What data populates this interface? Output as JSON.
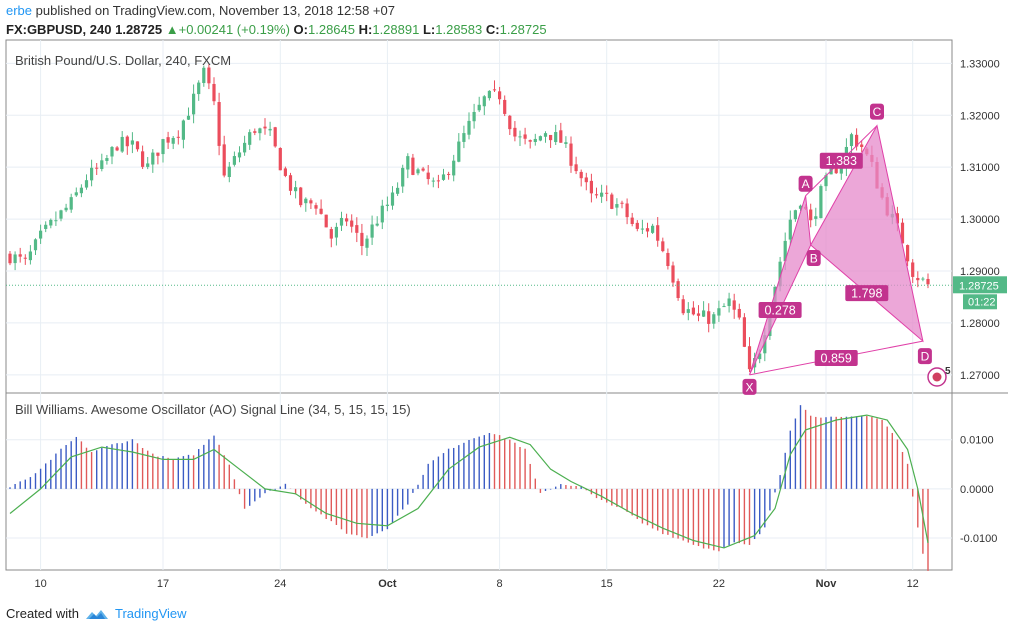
{
  "header": {
    "author": "erbe",
    "published_text": "published on TradingView.com, November 13, 2018 12:58 +07",
    "symbol": "FX:GBPUSD, 240",
    "last": "1.28725",
    "change_arrow": "▲",
    "change": "+0.00241 (+0.19%)",
    "o_label": "O:",
    "o_value": "1.28645",
    "h_label": "H:",
    "h_value": "1.28891",
    "l_label": "L:",
    "l_value": "1.28583",
    "c_label": "C:",
    "c_value": "1.28725"
  },
  "footer": {
    "created_with": "Created with",
    "brand": "TradingView"
  },
  "colors": {
    "up": "#53b987",
    "down": "#eb4d5c",
    "pattern": "#e040a8",
    "pattern_fill": "#e58acb",
    "ao_up": "#3b5bc4",
    "ao_down": "#e05a5a",
    "signal": "#4caf50",
    "price_tag": "#53b987"
  },
  "chart_data": [
    {
      "type": "candlestick",
      "title": "British Pound/U.S. Dollar, 240, FXCM",
      "y_ticks": [
        "1.33000",
        "1.32000",
        "1.31000",
        "1.30000",
        "1.29000",
        "1.28000",
        "1.27000"
      ],
      "ylim": [
        1.2665,
        1.3345
      ],
      "x_ticks": [
        "10",
        "17",
        "24",
        "Oct",
        "8",
        "15",
        "22",
        "Nov",
        "12"
      ],
      "last_price_label": "1.28725",
      "countdown_label": "01:22",
      "close_path": [
        [
          0,
          1.293
        ],
        [
          3,
          1.2915
        ],
        [
          6,
          1.2965
        ],
        [
          9,
          1.3
        ],
        [
          12,
          1.303
        ],
        [
          15,
          1.308
        ],
        [
          18,
          1.31
        ],
        [
          21,
          1.3145
        ],
        [
          24,
          1.314
        ],
        [
          27,
          1.31
        ],
        [
          30,
          1.315
        ],
        [
          33,
          1.317
        ],
        [
          36,
          1.323
        ],
        [
          38,
          1.328
        ],
        [
          40,
          1.322
        ],
        [
          42,
          1.308
        ],
        [
          45,
          1.313
        ],
        [
          48,
          1.3175
        ],
        [
          51,
          1.316
        ],
        [
          54,
          1.308
        ],
        [
          57,
          1.303
        ],
        [
          60,
          1.303
        ],
        [
          63,
          1.2965
        ],
        [
          66,
          1.3
        ],
        [
          69,
          1.295
        ],
        [
          72,
          1.3
        ],
        [
          75,
          1.304
        ],
        [
          78,
          1.311
        ],
        [
          81,
          1.308
        ],
        [
          84,
          1.306
        ],
        [
          87,
          1.312
        ],
        [
          90,
          1.318
        ],
        [
          93,
          1.323
        ],
        [
          96,
          1.324
        ],
        [
          99,
          1.316
        ],
        [
          102,
          1.314
        ],
        [
          105,
          1.317
        ],
        [
          108,
          1.315
        ],
        [
          111,
          1.31
        ],
        [
          114,
          1.304
        ],
        [
          117,
          1.304
        ],
        [
          120,
          1.302
        ],
        [
          123,
          1.2975
        ],
        [
          126,
          1.2985
        ],
        [
          129,
          1.292
        ],
        [
          132,
          1.283
        ],
        [
          135,
          1.281
        ],
        [
          138,
          1.281
        ],
        [
          141,
          1.284
        ],
        [
          143,
          1.28
        ],
        [
          145,
          1.27
        ],
        [
          147,
          1.275
        ],
        [
          149,
          1.283
        ],
        [
          151,
          1.292
        ],
        [
          153,
          1.3
        ],
        [
          155,
          1.304
        ],
        [
          157,
          1.299
        ],
        [
          159,
          1.305
        ],
        [
          161,
          1.309
        ],
        [
          163,
          1.311
        ],
        [
          165,
          1.316
        ],
        [
          167,
          1.314
        ],
        [
          169,
          1.31
        ],
        [
          171,
          1.304
        ],
        [
          173,
          1.3
        ],
        [
          175,
          1.296
        ],
        [
          177,
          1.29
        ],
        [
          179,
          1.288
        ],
        [
          180,
          1.2873
        ]
      ],
      "harmonic_pattern": {
        "points": [
          {
            "label": "X",
            "index": 145,
            "price": 1.27
          },
          {
            "label": "A",
            "index": 156,
            "price": 1.3045
          },
          {
            "label": "B",
            "index": 157,
            "price": 1.295
          },
          {
            "label": "C",
            "index": 170,
            "price": 1.318
          },
          {
            "label": "D",
            "index": 179,
            "price": 1.2765
          }
        ],
        "ratios": [
          {
            "label": "0.278",
            "between": "XB"
          },
          {
            "label": "1.383",
            "between": "AC"
          },
          {
            "label": "1.798",
            "between": "BD"
          },
          {
            "label": "0.859",
            "between": "XD"
          }
        ]
      },
      "badge_count": "5"
    },
    {
      "type": "bar",
      "title": "Bill Williams. Awesome Oscillator (AO) Signal Line (34, 5, 15, 15, 15)",
      "y_ticks": [
        "0.0100",
        "0.0000",
        "-0.0100"
      ],
      "ylim": [
        -0.0165,
        0.0195
      ],
      "ao_path": [
        [
          0,
          0.0003
        ],
        [
          5,
          0.003
        ],
        [
          10,
          0.008
        ],
        [
          13,
          0.0105
        ],
        [
          16,
          0.0075
        ],
        [
          20,
          0.009
        ],
        [
          24,
          0.01
        ],
        [
          28,
          0.007
        ],
        [
          32,
          0.006
        ],
        [
          36,
          0.007
        ],
        [
          40,
          0.011
        ],
        [
          43,
          0.005
        ],
        [
          46,
          -0.004
        ],
        [
          50,
          -0.001
        ],
        [
          54,
          0.001
        ],
        [
          58,
          -0.003
        ],
        [
          62,
          -0.006
        ],
        [
          66,
          -0.009
        ],
        [
          70,
          -0.01
        ],
        [
          74,
          -0.008
        ],
        [
          78,
          -0.003
        ],
        [
          82,
          0.005
        ],
        [
          86,
          0.008
        ],
        [
          90,
          0.01
        ],
        [
          94,
          0.0115
        ],
        [
          98,
          0.01
        ],
        [
          101,
          0.008
        ],
        [
          104,
          -0.001
        ],
        [
          108,
          0.001
        ],
        [
          112,
          0.0005
        ],
        [
          115,
          -0.002
        ],
        [
          120,
          -0.004
        ],
        [
          124,
          -0.007
        ],
        [
          128,
          -0.009
        ],
        [
          132,
          -0.0105
        ],
        [
          136,
          -0.012
        ],
        [
          139,
          -0.0125
        ],
        [
          142,
          -0.011
        ],
        [
          145,
          -0.0115
        ],
        [
          148,
          -0.008
        ],
        [
          151,
          0.003
        ],
        [
          153,
          0.012
        ],
        [
          155,
          0.017
        ],
        [
          157,
          0.015
        ],
        [
          160,
          0.0145
        ],
        [
          164,
          0.0145
        ],
        [
          168,
          0.015
        ],
        [
          171,
          0.014
        ],
        [
          174,
          0.01
        ],
        [
          176,
          0.005
        ],
        [
          178,
          -0.008
        ],
        [
          179,
          -0.013
        ],
        [
          180,
          -0.0165
        ]
      ],
      "signal_path": [
        [
          0,
          -0.005
        ],
        [
          6,
          0.0
        ],
        [
          12,
          0.0065
        ],
        [
          18,
          0.0085
        ],
        [
          24,
          0.0075
        ],
        [
          30,
          0.006
        ],
        [
          36,
          0.006
        ],
        [
          40,
          0.008
        ],
        [
          45,
          0.004
        ],
        [
          50,
          0.0
        ],
        [
          56,
          -0.001
        ],
        [
          62,
          -0.005
        ],
        [
          68,
          -0.007
        ],
        [
          74,
          -0.0075
        ],
        [
          80,
          -0.004
        ],
        [
          86,
          0.004
        ],
        [
          92,
          0.0085
        ],
        [
          98,
          0.0105
        ],
        [
          102,
          0.009
        ],
        [
          106,
          0.004
        ],
        [
          110,
          0.0015
        ],
        [
          116,
          -0.0015
        ],
        [
          122,
          -0.005
        ],
        [
          128,
          -0.008
        ],
        [
          134,
          -0.0105
        ],
        [
          140,
          -0.012
        ],
        [
          146,
          -0.0095
        ],
        [
          150,
          -0.004
        ],
        [
          153,
          0.007
        ],
        [
          156,
          0.012
        ],
        [
          162,
          0.014
        ],
        [
          168,
          0.015
        ],
        [
          172,
          0.014
        ],
        [
          176,
          0.008
        ],
        [
          178,
          0.0
        ],
        [
          180,
          -0.011
        ]
      ]
    }
  ]
}
